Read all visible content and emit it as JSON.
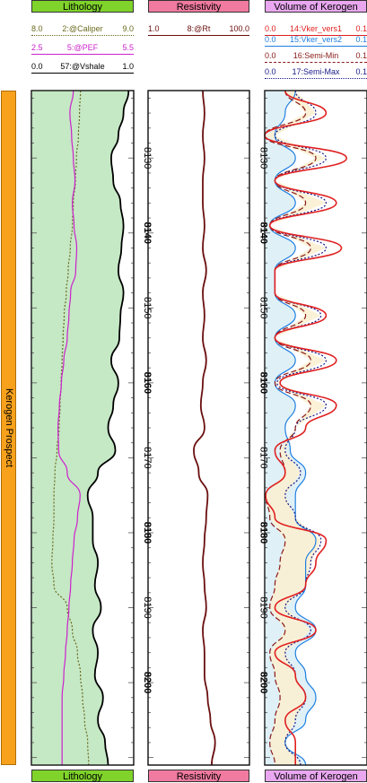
{
  "tracks": {
    "lithology": {
      "title": "Lithology",
      "color": "#7fd32a"
    },
    "resistivity": {
      "title": "Resistivity",
      "color": "#f07aa0"
    },
    "kerogen": {
      "title": "Volume of Kerogen",
      "color": "#e9a7f0"
    }
  },
  "side_label": "Kerogen Prospect",
  "curves": {
    "caliper": {
      "min": "8.0",
      "name": "2:@Caliper",
      "max": "9.0",
      "color": "#6b6b1f",
      "dash": "2,2"
    },
    "pef": {
      "min": "2.5",
      "name": "5:@PEF",
      "max": "5.5",
      "color": "#cc22cc",
      "dash": ""
    },
    "vshale": {
      "min": "0.0",
      "name": "57:@Vshale",
      "max": "1.0",
      "color": "#000000",
      "dash": ""
    },
    "rt": {
      "min": "1.0",
      "name": "8:@Rt",
      "max": "100.0",
      "color": "#6b0f0f",
      "dash": ""
    },
    "vker1": {
      "min": "0.0",
      "name": "14:Vker_vers1",
      "max": "0.1",
      "color": "#e02020",
      "dash": ""
    },
    "vker2": {
      "min": "0.0",
      "name": "15:Vker_vers2",
      "max": "0.1",
      "color": "#2080e0",
      "dash": ""
    },
    "semimin": {
      "min": "0.0",
      "name": "16:Semi-Min",
      "max": "0.1",
      "color": "#8a1a1a",
      "dash": "6,3"
    },
    "semimax": {
      "min": "0.0",
      "name": "17:Semi-Max",
      "max": "0.1",
      "color": "#1a1a8a",
      "dash": "2,2"
    }
  },
  "chart_data": {
    "type": "line",
    "depth_range": [
      8121,
      8211
    ],
    "depth_ticks": [
      "8130",
      "8140",
      "8150",
      "8160",
      "8170",
      "8180",
      "8190",
      "8200"
    ],
    "depth_ticks_bold": [
      "8140",
      "8160",
      "8180",
      "8200"
    ],
    "depth": [
      8121,
      8124,
      8127,
      8130,
      8133,
      8136,
      8139,
      8142,
      8145,
      8148,
      8151,
      8154,
      8157,
      8160,
      8163,
      8166,
      8169,
      8172,
      8175,
      8178,
      8181,
      8184,
      8187,
      8190,
      8193,
      8196,
      8199,
      8202,
      8205,
      8208,
      8211
    ],
    "series": [
      {
        "name": "2:@Caliper",
        "key": "caliper",
        "track": "lithology",
        "values": [
          8.48,
          8.47,
          8.46,
          8.44,
          8.43,
          8.41,
          8.4,
          8.38,
          8.36,
          8.34,
          8.32,
          8.31,
          8.3,
          8.29,
          8.28,
          8.27,
          8.25,
          8.23,
          8.22,
          8.22,
          8.21,
          8.2,
          8.22,
          8.35,
          8.4,
          8.45,
          8.48,
          8.5,
          8.52,
          8.55,
          8.56
        ]
      },
      {
        "name": "5:@PEF",
        "key": "pef",
        "track": "lithology",
        "values": [
          3.73,
          3.63,
          3.68,
          3.73,
          3.78,
          3.7,
          3.75,
          3.83,
          3.8,
          3.65,
          3.6,
          3.55,
          3.45,
          3.38,
          3.32,
          3.28,
          3.3,
          3.55,
          3.93,
          3.85,
          3.75,
          3.7,
          3.65,
          3.6,
          3.55,
          3.5,
          3.45,
          3.4,
          3.4,
          3.4,
          3.4
        ]
      },
      {
        "name": "57:@Vshale",
        "key": "vshale",
        "track": "lithology",
        "values": [
          0.95,
          0.9,
          0.85,
          0.78,
          0.8,
          0.87,
          0.9,
          0.88,
          0.85,
          0.9,
          0.87,
          0.86,
          0.78,
          0.85,
          0.8,
          0.75,
          0.82,
          0.65,
          0.55,
          0.6,
          0.6,
          0.65,
          0.62,
          0.68,
          0.6,
          0.65,
          0.62,
          0.7,
          0.65,
          0.72,
          0.75
        ]
      },
      {
        "name": "8:@Rt",
        "key": "rt",
        "track": "resistivity",
        "values": [
          12,
          13,
          12,
          13,
          12,
          12,
          13,
          12,
          14,
          12,
          13,
          12,
          14,
          12,
          11,
          13,
          8,
          10,
          15,
          14,
          13,
          12,
          13,
          14,
          12,
          13,
          13,
          15,
          17,
          21,
          18
        ]
      },
      {
        "name": "14:Vker_vers1",
        "key": "vker1",
        "track": "kerogen",
        "values": [
          0.02,
          0.06,
          0.0,
          0.08,
          0.01,
          0.07,
          0.005,
          0.075,
          0.01,
          0.01,
          0.06,
          0.01,
          0.07,
          0.015,
          0.07,
          0.04,
          0.01,
          0.02,
          0.001,
          0.01,
          0.06,
          0.05,
          0.04,
          0.01,
          0.05,
          0.01,
          0.03,
          0.04,
          0.02,
          0.03,
          0.03
        ]
      },
      {
        "name": "15:Vker_vers2",
        "key": "vker2",
        "track": "kerogen",
        "values": [
          0.03,
          0.02,
          0.01,
          0.03,
          0.01,
          0.03,
          0.005,
          0.03,
          0.01,
          0.01,
          0.03,
          0.01,
          0.03,
          0.01,
          0.03,
          0.02,
          0.025,
          0.04,
          0.03,
          0.03,
          0.05,
          0.04,
          0.04,
          0.03,
          0.05,
          0.03,
          0.04,
          0.05,
          0.04,
          0.02,
          0.04
        ]
      },
      {
        "name": "16:Semi-Min",
        "key": "semimin",
        "track": "kerogen",
        "values": [
          0.02,
          0.04,
          0.0,
          0.05,
          0.01,
          0.04,
          0.005,
          0.045,
          0.01,
          0.01,
          0.04,
          0.01,
          0.045,
          0.01,
          0.045,
          0.03,
          0.015,
          0.02,
          0.001,
          0.005,
          0.02,
          0.015,
          0.01,
          0.005,
          0.02,
          0.005,
          0.01,
          0.015,
          0.01,
          0.005,
          0.01
        ]
      },
      {
        "name": "17:Semi-Max",
        "key": "semimax",
        "track": "kerogen",
        "values": [
          0.03,
          0.05,
          0.01,
          0.06,
          0.01,
          0.06,
          0.005,
          0.06,
          0.01,
          0.01,
          0.055,
          0.01,
          0.06,
          0.012,
          0.06,
          0.03,
          0.02,
          0.035,
          0.02,
          0.03,
          0.055,
          0.045,
          0.04,
          0.02,
          0.045,
          0.02,
          0.03,
          0.04,
          0.03,
          0.02,
          0.035
        ]
      }
    ]
  }
}
